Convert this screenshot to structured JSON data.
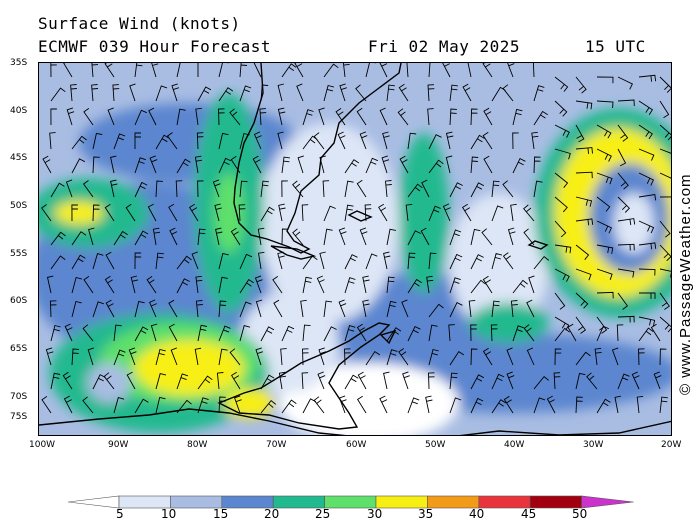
{
  "header": {
    "title": "Surface Wind (knots)",
    "model": "ECMWF 039 Hour Forecast",
    "date": "Fri 02 May 2025",
    "time": "15 UTC"
  },
  "map": {
    "projection": "regional chart, South Atlantic / Southern Ocean",
    "latitude_labels": [
      "35S",
      "40S",
      "45S",
      "50S",
      "55S",
      "60S",
      "65S",
      "70S",
      "75S"
    ],
    "longitude_labels": [
      "100W",
      "90W",
      "80W",
      "70W",
      "60W",
      "50W",
      "40W",
      "30W",
      "20W"
    ]
  },
  "legend": {
    "unit": "knots",
    "ticks": [
      "5",
      "10",
      "15",
      "20",
      "25",
      "30",
      "35",
      "40",
      "45",
      "50"
    ],
    "colors": [
      "#ffffff",
      "#dde6f6",
      "#a9bde3",
      "#5c86cf",
      "#23b98f",
      "#5fe06a",
      "#f7ef13",
      "#f29b18",
      "#e8343c",
      "#a3000f",
      "#cc33cc"
    ]
  },
  "credit": {
    "text": "© www.PassageWeather.com"
  }
}
